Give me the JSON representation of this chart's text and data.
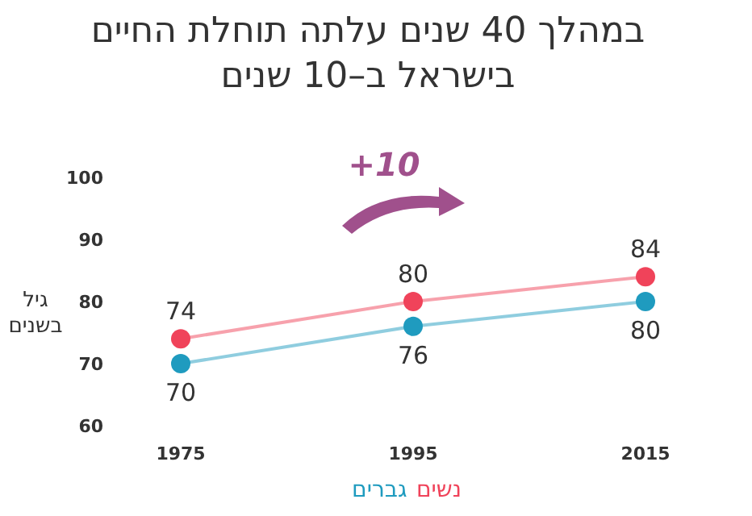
{
  "chart_data": {
    "type": "line",
    "title": "במהלך 40 שנים עלתה תוחלת החיים בישראל ב–10 שנים",
    "ylabel": "גיל בשנים",
    "categories": [
      "1975",
      "1995",
      "2015"
    ],
    "series": [
      {
        "name": "נשים",
        "color": "#f0435a",
        "values": [
          74,
          80,
          84
        ]
      },
      {
        "name": "גברים",
        "color": "#1f9bbf",
        "values": [
          70,
          76,
          80
        ]
      }
    ],
    "ylim": [
      60,
      100
    ],
    "yticks": [
      60,
      70,
      80,
      90,
      100
    ],
    "grid": false,
    "legend": "bottom",
    "marker": "circle",
    "data_labels": true,
    "annotations": [
      "+10"
    ]
  }
}
